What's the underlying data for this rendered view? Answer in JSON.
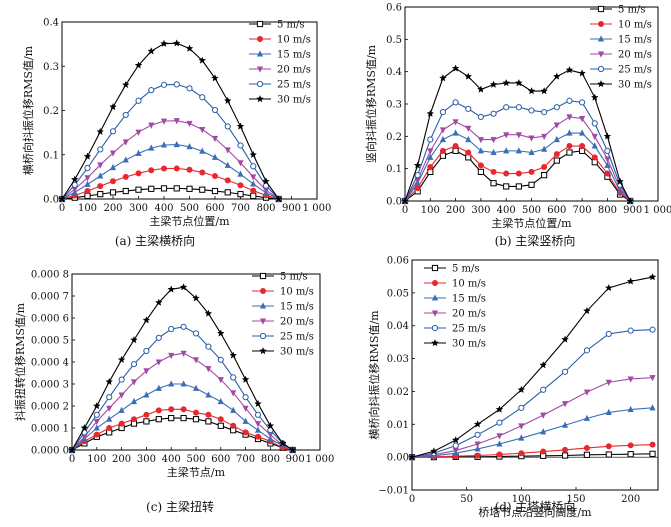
{
  "figure": {
    "captions": [
      "(a) 主梁横桥向",
      "(b) 主梁竖桥向",
      "(c) 主梁扭转",
      "(d) 主塔横桥向"
    ]
  },
  "chart_data": [
    {
      "type": "line",
      "caption": "(a) 主梁横桥向",
      "xlabel": "主梁节点位置/m",
      "ylabel": "横桥向抖振位移RMS值/m",
      "xlim": [
        0,
        1000
      ],
      "ylim": [
        0,
        0.4
      ],
      "xticks": [
        0,
        100,
        200,
        300,
        400,
        500,
        600,
        700,
        800,
        900,
        1000
      ],
      "xtick_labels": [
        "0",
        "100",
        "200",
        "300",
        "400",
        "500",
        "600",
        "700",
        "800",
        "900",
        "1 000"
      ],
      "yticks": [
        0,
        0.1,
        0.2,
        0.3,
        0.4
      ],
      "ytick_labels": [
        "0.0",
        "0.1",
        "0.2",
        "0.3",
        "0.4"
      ],
      "legend_position": "top-right",
      "grid": false,
      "x": [
        0,
        50,
        100,
        150,
        200,
        250,
        300,
        350,
        400,
        450,
        500,
        550,
        600,
        650,
        700,
        750,
        800,
        850
      ],
      "series": [
        {
          "name": "5 m/s",
          "color": "#000000",
          "marker": "square",
          "values": [
            0,
            0.003,
            0.007,
            0.011,
            0.015,
            0.018,
            0.021,
            0.023,
            0.024,
            0.024,
            0.023,
            0.021,
            0.018,
            0.015,
            0.011,
            0.007,
            0.003,
            0
          ]
        },
        {
          "name": "10 m/s",
          "color": "#e8282e",
          "marker": "circle",
          "values": [
            0,
            0.008,
            0.018,
            0.029,
            0.04,
            0.05,
            0.058,
            0.065,
            0.069,
            0.069,
            0.066,
            0.06,
            0.052,
            0.042,
            0.031,
            0.019,
            0.008,
            0
          ]
        },
        {
          "name": "15 m/s",
          "color": "#3a6fb5",
          "marker": "triangle-up",
          "values": [
            0,
            0.015,
            0.033,
            0.052,
            0.071,
            0.088,
            0.103,
            0.115,
            0.122,
            0.123,
            0.118,
            0.108,
            0.094,
            0.076,
            0.056,
            0.034,
            0.014,
            0
          ]
        },
        {
          "name": "20 m/s",
          "color": "#a349a4",
          "marker": "triangle-down",
          "values": [
            0,
            0.022,
            0.048,
            0.077,
            0.104,
            0.129,
            0.151,
            0.167,
            0.176,
            0.177,
            0.171,
            0.157,
            0.137,
            0.111,
            0.082,
            0.05,
            0.02,
            0
          ]
        },
        {
          "name": "25 m/s",
          "color": "#2a5ea8",
          "marker": "open-circle",
          "values": [
            0,
            0.032,
            0.07,
            0.112,
            0.153,
            0.19,
            0.222,
            0.246,
            0.258,
            0.259,
            0.25,
            0.23,
            0.201,
            0.164,
            0.121,
            0.074,
            0.03,
            0
          ]
        },
        {
          "name": "30 m/s",
          "color": "#000000",
          "marker": "star",
          "values": [
            0,
            0.044,
            0.096,
            0.152,
            0.208,
            0.258,
            0.302,
            0.334,
            0.351,
            0.352,
            0.34,
            0.313,
            0.273,
            0.222,
            0.164,
            0.1,
            0.04,
            0
          ]
        }
      ]
    },
    {
      "type": "line",
      "caption": "(b) 主梁竖桥向",
      "xlabel": "主梁节点位置/m",
      "ylabel": "竖向抖振位移RMS值/m",
      "xlim": [
        0,
        1000
      ],
      "ylim": [
        0,
        0.6
      ],
      "xticks": [
        0,
        100,
        200,
        300,
        400,
        500,
        600,
        700,
        800,
        900,
        1000
      ],
      "xtick_labels": [
        "0",
        "100",
        "200",
        "300",
        "400",
        "500",
        "600",
        "700",
        "800",
        "900",
        "1 000"
      ],
      "yticks": [
        0,
        0.1,
        0.2,
        0.3,
        0.4,
        0.5,
        0.6
      ],
      "ytick_labels": [
        "0.0",
        "0.1",
        "0.2",
        "0.3",
        "0.4",
        "0.5",
        "0.6"
      ],
      "legend_position": "top-right",
      "grid": false,
      "x": [
        0,
        50,
        100,
        150,
        200,
        250,
        300,
        350,
        400,
        450,
        500,
        550,
        600,
        650,
        700,
        750,
        800,
        850,
        890
      ],
      "series": [
        {
          "name": "5 m/s",
          "color": "#000000",
          "marker": "square",
          "values": [
            0,
            0.03,
            0.09,
            0.14,
            0.155,
            0.135,
            0.09,
            0.055,
            0.045,
            0.045,
            0.05,
            0.08,
            0.125,
            0.15,
            0.155,
            0.12,
            0.075,
            0.02,
            0
          ]
        },
        {
          "name": "10 m/s",
          "color": "#e8282e",
          "marker": "circle",
          "values": [
            0,
            0.04,
            0.105,
            0.155,
            0.17,
            0.15,
            0.11,
            0.09,
            0.085,
            0.085,
            0.09,
            0.105,
            0.145,
            0.17,
            0.17,
            0.135,
            0.085,
            0.025,
            0
          ]
        },
        {
          "name": "15 m/s",
          "color": "#3a6fb5",
          "marker": "triangle-up",
          "values": [
            0,
            0.055,
            0.135,
            0.19,
            0.21,
            0.19,
            0.155,
            0.15,
            0.155,
            0.155,
            0.15,
            0.16,
            0.19,
            0.21,
            0.21,
            0.17,
            0.11,
            0.03,
            0
          ]
        },
        {
          "name": "20 m/s",
          "color": "#a349a4",
          "marker": "triangle-down",
          "values": [
            0,
            0.065,
            0.155,
            0.22,
            0.245,
            0.225,
            0.19,
            0.19,
            0.205,
            0.205,
            0.195,
            0.2,
            0.235,
            0.26,
            0.255,
            0.2,
            0.13,
            0.04,
            0
          ]
        },
        {
          "name": "25 m/s",
          "color": "#2a5ea8",
          "marker": "open-circle",
          "values": [
            0,
            0.08,
            0.19,
            0.275,
            0.305,
            0.285,
            0.26,
            0.27,
            0.29,
            0.29,
            0.28,
            0.275,
            0.29,
            0.31,
            0.305,
            0.24,
            0.155,
            0.05,
            0
          ]
        },
        {
          "name": "30 m/s",
          "color": "#000000",
          "marker": "star",
          "values": [
            0,
            0.11,
            0.27,
            0.38,
            0.41,
            0.385,
            0.345,
            0.36,
            0.365,
            0.365,
            0.34,
            0.34,
            0.385,
            0.405,
            0.395,
            0.32,
            0.2,
            0.06,
            0
          ]
        }
      ]
    },
    {
      "type": "line",
      "caption": "(c) 主梁扭转",
      "xlabel": "主梁节点/m",
      "ylabel": "抖振扭转位移RMS值/m",
      "xlim": [
        0,
        1000
      ],
      "ylim": [
        0,
        0.0008
      ],
      "xticks": [
        0,
        100,
        200,
        300,
        400,
        500,
        600,
        700,
        800,
        900,
        1000
      ],
      "xtick_labels": [
        "0",
        "100",
        "200",
        "300",
        "400",
        "500",
        "600",
        "700",
        "800",
        "900",
        "1 000"
      ],
      "yticks": [
        0,
        0.0001,
        0.0002,
        0.0003,
        0.0004,
        0.0005,
        0.0006,
        0.0007,
        0.0008
      ],
      "ytick_labels": [
        "0.000 0",
        "0.000 1",
        "0.000 2",
        "0.000 3",
        "0.000 4",
        "0.000 5",
        "0.000 6",
        "0.000 7",
        "0.000 8"
      ],
      "legend_position": "top-right",
      "grid": false,
      "x": [
        0,
        50,
        100,
        150,
        200,
        250,
        300,
        350,
        400,
        450,
        500,
        550,
        600,
        650,
        700,
        750,
        800,
        850,
        890
      ],
      "series": [
        {
          "name": "5 m/s",
          "color": "#000000",
          "marker": "square",
          "values": [
            0,
            3e-05,
            6e-05,
            8e-05,
            0.0001,
            0.00012,
            0.00013,
            0.00014,
            0.000145,
            0.000145,
            0.00014,
            0.00013,
            0.00011,
            9e-05,
            7e-05,
            5e-05,
            3e-05,
            1e-05,
            0
          ]
        },
        {
          "name": "10 m/s",
          "color": "#e8282e",
          "marker": "circle",
          "values": [
            0,
            4e-05,
            7e-05,
            0.0001,
            0.00012,
            0.00014,
            0.00016,
            0.00018,
            0.000185,
            0.000185,
            0.00017,
            0.00016,
            0.00014,
            0.00011,
            8e-05,
            6e-05,
            4e-05,
            1e-05,
            0
          ]
        },
        {
          "name": "15 m/s",
          "color": "#3a6fb5",
          "marker": "triangle-up",
          "values": [
            0,
            5e-05,
            0.0001,
            0.00014,
            0.00018,
            0.00022,
            0.00025,
            0.00028,
            0.0003,
            0.0003,
            0.00028,
            0.00025,
            0.00022,
            0.00018,
            0.00013,
            9e-05,
            5e-05,
            2e-05,
            0
          ]
        },
        {
          "name": "20 m/s",
          "color": "#a349a4",
          "marker": "triangle-down",
          "values": [
            0,
            6e-05,
            0.00013,
            0.00019,
            0.00025,
            0.00031,
            0.00036,
            0.0004,
            0.00043,
            0.00044,
            0.00041,
            0.00037,
            0.00032,
            0.00026,
            0.00019,
            0.00012,
            7e-05,
            2e-05,
            0
          ]
        },
        {
          "name": "25 m/s",
          "color": "#2a5ea8",
          "marker": "open-circle",
          "values": [
            0,
            8e-05,
            0.00016,
            0.00024,
            0.00032,
            0.00039,
            0.00045,
            0.00051,
            0.00055,
            0.00056,
            0.00053,
            0.00047,
            0.00041,
            0.00033,
            0.00024,
            0.00016,
            9e-05,
            3e-05,
            0
          ]
        },
        {
          "name": "30 m/s",
          "color": "#000000",
          "marker": "star",
          "values": [
            0,
            0.0001,
            0.0002,
            0.00031,
            0.00041,
            0.0005,
            0.00059,
            0.00067,
            0.00073,
            0.00074,
            0.00069,
            0.00062,
            0.00053,
            0.00043,
            0.00032,
            0.00021,
            0.00011,
            3e-05,
            0
          ]
        }
      ]
    },
    {
      "type": "line",
      "caption": "(d) 主塔横桥向",
      "xlabel": "桥塔节点沿竖向高度/m",
      "ylabel": "横桥向抖振位移RMS值/m",
      "xlim": [
        0,
        225
      ],
      "ylim": [
        -0.01,
        0.06
      ],
      "xticks": [
        0,
        50,
        100,
        150,
        200
      ],
      "xtick_labels": [
        "0",
        "50",
        "100",
        "150",
        "200"
      ],
      "yticks": [
        -0.01,
        0,
        0.01,
        0.02,
        0.03,
        0.04,
        0.05,
        0.06
      ],
      "ytick_labels": [
        "−0.01",
        "0.00",
        "0.01",
        "0.02",
        "0.03",
        "0.04",
        "0.05",
        "0.06"
      ],
      "legend_position": "top-left",
      "grid": false,
      "x": [
        0,
        20,
        40,
        60,
        80,
        100,
        120,
        140,
        160,
        180,
        200,
        220
      ],
      "series": [
        {
          "name": "5 m/s",
          "color": "#000000",
          "marker": "square",
          "values": [
            0,
            0,
            0.0001,
            0.0001,
            0.0002,
            0.0003,
            0.0004,
            0.0005,
            0.0007,
            0.0008,
            0.0009,
            0.001
          ]
        },
        {
          "name": "10 m/s",
          "color": "#e8282e",
          "marker": "circle",
          "values": [
            0,
            0.0001,
            0.0003,
            0.0005,
            0.0008,
            0.0012,
            0.0017,
            0.0022,
            0.0028,
            0.0033,
            0.0036,
            0.0038
          ]
        },
        {
          "name": "15 m/s",
          "color": "#3a6fb5",
          "marker": "triangle-up",
          "values": [
            0,
            0.0004,
            0.0012,
            0.0025,
            0.004,
            0.0058,
            0.0077,
            0.0097,
            0.0118,
            0.0136,
            0.0145,
            0.015
          ]
        },
        {
          "name": "20 m/s",
          "color": "#a349a4",
          "marker": "triangle-down",
          "values": [
            0,
            0.0007,
            0.002,
            0.004,
            0.0065,
            0.0095,
            0.0128,
            0.0163,
            0.0198,
            0.0228,
            0.0238,
            0.0242
          ]
        },
        {
          "name": "25 m/s",
          "color": "#2a5ea8",
          "marker": "open-circle",
          "values": [
            0,
            0.0012,
            0.0035,
            0.0068,
            0.0105,
            0.015,
            0.0205,
            0.026,
            0.0325,
            0.0375,
            0.0385,
            0.0388
          ]
        },
        {
          "name": "30 m/s",
          "color": "#000000",
          "marker": "star",
          "values": [
            0,
            0.0018,
            0.0052,
            0.01,
            0.0145,
            0.0205,
            0.028,
            0.0358,
            0.0445,
            0.0515,
            0.0535,
            0.0548
          ]
        }
      ]
    }
  ]
}
